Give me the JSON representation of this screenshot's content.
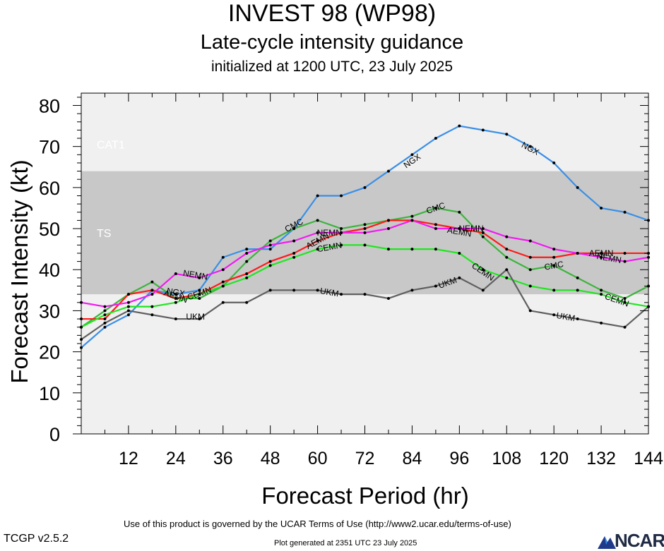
{
  "header": {
    "title": "INVEST 98 (WP98)",
    "subtitle": "Late-cycle intensity guidance",
    "init_line": "initialized at 1200 UTC, 23 July 2025"
  },
  "footer": {
    "terms": "Use of this product is governed by the UCAR Terms of Use (http://www2.ucar.edu/terms-of-use)",
    "version": "TCGP v2.5.2",
    "generated": "Plot generated at 2351 UTC   23 July 2025",
    "logo_text": "NCAR"
  },
  "chart_data": {
    "type": "line",
    "xlabel": "Forecast Period (hr)",
    "ylabel": "Forecast Intensity (kt)",
    "xlim": [
      0,
      144
    ],
    "ylim": [
      0,
      80
    ],
    "xticks": [
      12,
      24,
      36,
      48,
      60,
      72,
      84,
      96,
      108,
      120,
      132,
      144
    ],
    "yticks": [
      0,
      10,
      20,
      30,
      40,
      50,
      60,
      70,
      80
    ],
    "bands": [
      {
        "label": "TS",
        "from": 34,
        "to": 64,
        "color": "#c8c8c8"
      },
      {
        "label": "CAT1",
        "from": 64,
        "to": 83,
        "color": "#f0f0f0"
      }
    ],
    "below_band_color": "#f0f0f0",
    "series": [
      {
        "name": "NGX",
        "color": "#3a8fe6",
        "x": [
          0,
          6,
          12,
          18,
          24,
          30,
          36,
          42,
          48,
          54,
          60,
          66,
          72,
          78,
          84,
          90,
          96,
          102,
          108,
          114,
          120,
          126,
          132,
          138,
          144
        ],
        "y": [
          21,
          26,
          29,
          35,
          34,
          35,
          43,
          45,
          45,
          50,
          58,
          58,
          60,
          64,
          68,
          72,
          75,
          74,
          73,
          70,
          66,
          60,
          55,
          54,
          52
        ],
        "labels": [
          {
            "x": 24,
            "y": 34.5
          },
          {
            "x": 84,
            "y": 66.5
          },
          {
            "x": 114,
            "y": 69.5
          }
        ]
      },
      {
        "name": "CMC",
        "color": "#3cb43c",
        "x": [
          0,
          6,
          12,
          18,
          24,
          30,
          36,
          42,
          48,
          54,
          60,
          66,
          72,
          78,
          84,
          90,
          96,
          102,
          108,
          114,
          120,
          126,
          132,
          138,
          144
        ],
        "y": [
          26,
          30,
          34,
          37,
          33,
          33,
          36,
          42,
          47,
          50,
          52,
          50,
          51,
          52,
          53,
          55,
          54,
          48,
          43,
          40,
          41,
          38,
          35,
          33,
          36
        ],
        "labels": [
          {
            "x": 54,
            "y": 50.8
          },
          {
            "x": 90,
            "y": 55
          },
          {
            "x": 120,
            "y": 41
          }
        ]
      },
      {
        "name": "AEMN",
        "color": "#ff1a1a",
        "x": [
          0,
          6,
          12,
          18,
          24,
          30,
          36,
          42,
          48,
          54,
          60,
          66,
          72,
          78,
          84,
          90,
          96,
          102,
          108,
          114,
          120,
          126,
          132,
          138,
          144
        ],
        "y": [
          28,
          28,
          34,
          35,
          33,
          34,
          37,
          39,
          42,
          44,
          47,
          49,
          50,
          52,
          52,
          51,
          50,
          49,
          45,
          43,
          43,
          44,
          44,
          44,
          44
        ],
        "labels": [
          {
            "x": 24,
            "y": 33.5
          },
          {
            "x": 60,
            "y": 47
          },
          {
            "x": 96,
            "y": 49.2
          },
          {
            "x": 132,
            "y": 44
          }
        ]
      },
      {
        "name": "NEMN",
        "color": "#f21af2",
        "x": [
          0,
          6,
          12,
          18,
          24,
          30,
          36,
          42,
          48,
          54,
          60,
          66,
          72,
          78,
          84,
          90,
          96,
          102,
          108,
          114,
          120,
          126,
          132,
          138,
          144
        ],
        "y": [
          32,
          31,
          32,
          34,
          39,
          38,
          40,
          44,
          46,
          47,
          49,
          49,
          49,
          50,
          52,
          50,
          50,
          50,
          48,
          47,
          45,
          44,
          43,
          42,
          43
        ],
        "labels": [
          {
            "x": 29,
            "y": 38.7
          },
          {
            "x": 63,
            "y": 49
          },
          {
            "x": 99,
            "y": 50
          },
          {
            "x": 134,
            "y": 42.8
          }
        ]
      },
      {
        "name": "CEMN",
        "color": "#1fe61f",
        "x": [
          0,
          6,
          12,
          18,
          24,
          30,
          36,
          42,
          48,
          54,
          60,
          66,
          72,
          78,
          84,
          90,
          96,
          102,
          108,
          114,
          120,
          126,
          132,
          138,
          144
        ],
        "y": [
          26,
          29,
          31,
          31,
          32,
          34,
          36,
          38,
          41,
          43,
          45,
          46,
          46,
          45,
          45,
          45,
          44,
          40,
          38,
          36,
          35,
          35,
          34,
          32,
          31
        ],
        "labels": [
          {
            "x": 30,
            "y": 34.2
          },
          {
            "x": 63,
            "y": 45.5
          },
          {
            "x": 102,
            "y": 39.5
          },
          {
            "x": 136,
            "y": 32.6
          }
        ]
      },
      {
        "name": "UKM",
        "color": "#606060",
        "x": [
          0,
          6,
          12,
          18,
          24,
          30,
          36,
          42,
          48,
          54,
          60,
          66,
          72,
          78,
          84,
          90,
          96,
          102,
          108,
          114,
          120,
          126,
          132,
          138,
          144
        ],
        "y": [
          23,
          27,
          30,
          29,
          28,
          28,
          32,
          32,
          35,
          35,
          35,
          34,
          34,
          33,
          35,
          36,
          38,
          35,
          40,
          30,
          29,
          28,
          27,
          26,
          31
        ],
        "labels": [
          {
            "x": 29,
            "y": 28.5
          },
          {
            "x": 63,
            "y": 34.5
          },
          {
            "x": 93,
            "y": 36.8
          },
          {
            "x": 123,
            "y": 28.5
          }
        ]
      }
    ]
  }
}
